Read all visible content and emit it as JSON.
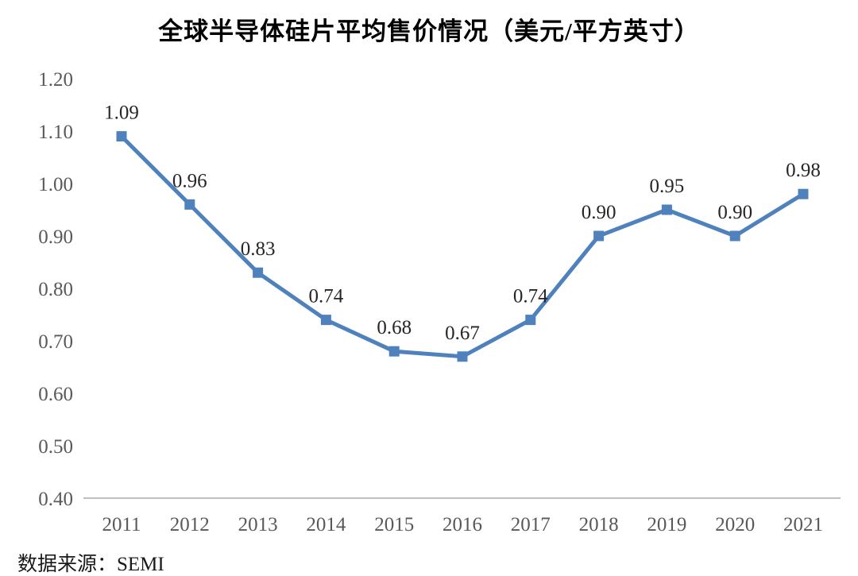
{
  "page": {
    "title": "全球半导体硅片平均售价情况（美元/平方英寸）",
    "source": "数据来源：SEMI"
  },
  "chart_data": {
    "type": "line",
    "title": "全球半导体硅片平均售价情况（美元/平方英寸）",
    "categories": [
      "2011",
      "2012",
      "2013",
      "2014",
      "2015",
      "2016",
      "2017",
      "2018",
      "2019",
      "2020",
      "2021"
    ],
    "values": [
      1.09,
      0.96,
      0.83,
      0.74,
      0.68,
      0.67,
      0.74,
      0.9,
      0.95,
      0.9,
      0.98
    ],
    "point_labels": [
      "1.09",
      "0.96",
      "0.83",
      "0.74",
      "0.68",
      "0.67",
      "0.74",
      "0.90",
      "0.95",
      "0.90",
      "0.98"
    ],
    "ylim": [
      0.4,
      1.2
    ],
    "ytick_step": 0.1,
    "ytick_labels": [
      "1.20",
      "1.10",
      "1.00",
      "0.90",
      "0.80",
      "0.70",
      "0.60",
      "0.50",
      "0.40"
    ],
    "xlabel": "",
    "ylabel": "",
    "grid": false,
    "legend": false,
    "marker": "square",
    "source_note": "数据来源：SEMI",
    "colors": {
      "line": "#4F81BD",
      "marker": "#4F81BD",
      "axis_line": "#BFBFBF",
      "tick_text": "#595959",
      "point_label_text": "#262626",
      "title_text": "#000000",
      "background": "#FFFFFF"
    }
  }
}
